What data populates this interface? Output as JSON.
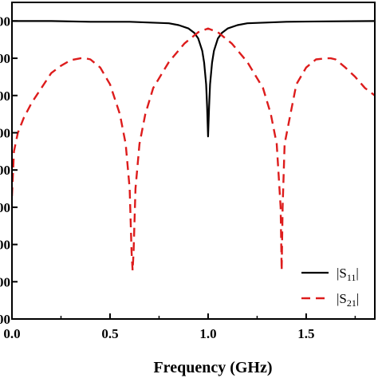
{
  "chart_data": {
    "type": "line",
    "xlabel": "Frequency (GHz)",
    "ylabel": "",
    "xlim": [
      0.0,
      1.85
    ],
    "ylim": [
      -0.8,
      0.05
    ],
    "x_ticks": [
      0.0,
      0.5,
      1.0,
      1.5
    ],
    "x_tick_labels": [
      "0.0",
      "0.5",
      "1.0",
      "1.5"
    ],
    "y_ticks": [
      0.0,
      -0.1,
      -0.2,
      -0.3,
      -0.4,
      -0.5,
      -0.6,
      -0.7,
      -0.8
    ],
    "y_tick_labels": [
      "00",
      "00",
      "00",
      "00",
      "00",
      "00",
      "00",
      "00",
      "00"
    ],
    "grid": false,
    "legend_position": "bottom-right",
    "series": [
      {
        "name": "|S11|",
        "name_main": "|S",
        "name_sub": "11",
        "name_end": "|",
        "color": "#000000",
        "dash": "solid",
        "x": [
          0.0,
          0.2,
          0.4,
          0.6,
          0.8,
          0.85,
          0.9,
          0.93,
          0.95,
          0.97,
          0.98,
          0.99,
          0.995,
          1.0,
          1.005,
          1.01,
          1.02,
          1.03,
          1.05,
          1.07,
          1.1,
          1.15,
          1.2,
          1.4,
          1.6,
          1.85
        ],
        "y": [
          0.0,
          0.0,
          -0.002,
          -0.002,
          -0.006,
          -0.011,
          -0.02,
          -0.032,
          -0.047,
          -0.08,
          -0.112,
          -0.17,
          -0.23,
          -0.31,
          -0.23,
          -0.17,
          -0.112,
          -0.08,
          -0.047,
          -0.032,
          -0.02,
          -0.011,
          -0.006,
          -0.002,
          -0.001,
          0.0
        ]
      },
      {
        "name": "|S21|",
        "name_main": "|S",
        "name_sub": "21",
        "name_end": "|",
        "color": "#dd1c1c",
        "dash": "dashed",
        "x": [
          0.0,
          0.01,
          0.03,
          0.06,
          0.1,
          0.15,
          0.2,
          0.25,
          0.3,
          0.35,
          0.375,
          0.4,
          0.45,
          0.5,
          0.55,
          0.58,
          0.6,
          0.61,
          0.615,
          0.62,
          0.63,
          0.65,
          0.68,
          0.72,
          0.8,
          0.88,
          0.95,
          1.0,
          1.05,
          1.12,
          1.2,
          1.28,
          1.32,
          1.35,
          1.37,
          1.375,
          1.38,
          1.39,
          1.42,
          1.45,
          1.5,
          1.55,
          1.6,
          1.625,
          1.65,
          1.7,
          1.75,
          1.8,
          1.85
        ],
        "y": [
          -0.47,
          -0.35,
          -0.3,
          -0.26,
          -0.22,
          -0.18,
          -0.14,
          -0.12,
          -0.105,
          -0.1,
          -0.1,
          -0.103,
          -0.125,
          -0.17,
          -0.25,
          -0.33,
          -0.45,
          -0.62,
          -0.67,
          -0.62,
          -0.45,
          -0.33,
          -0.25,
          -0.18,
          -0.11,
          -0.06,
          -0.03,
          -0.02,
          -0.03,
          -0.06,
          -0.11,
          -0.18,
          -0.25,
          -0.33,
          -0.5,
          -0.67,
          -0.5,
          -0.33,
          -0.25,
          -0.17,
          -0.125,
          -0.103,
          -0.1,
          -0.1,
          -0.103,
          -0.125,
          -0.15,
          -0.18,
          -0.2
        ]
      }
    ]
  }
}
